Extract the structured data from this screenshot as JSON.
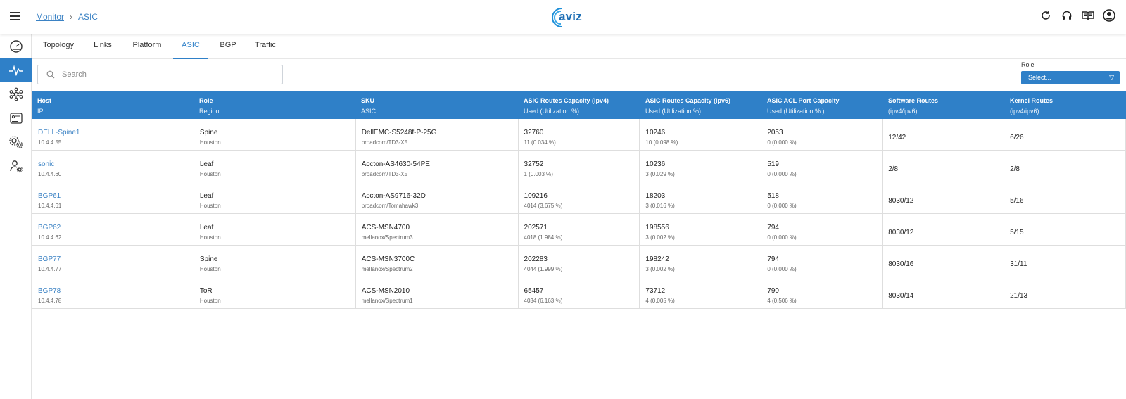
{
  "breadcrumb": {
    "parent": "Monitor",
    "separator": "›",
    "current": "ASIC"
  },
  "logo": {
    "text": "aviz",
    "color": "#1e6fb5"
  },
  "colors": {
    "accent": "#2f80c8",
    "link": "#3b82c4"
  },
  "topbar_icons": [
    "refresh-icon",
    "headset-icon",
    "book-icon",
    "account-icon"
  ],
  "rail_icons": [
    "dashboard-gauge-icon",
    "pulse-monitor-icon",
    "network-topology-icon",
    "inventory-icon",
    "settings-gears-icon",
    "user-settings-icon"
  ],
  "tabs": [
    "Topology",
    "Links",
    "Platform",
    "ASIC",
    "BGP",
    "Traffic"
  ],
  "active_tab": "ASIC",
  "search": {
    "placeholder": "Search",
    "value": ""
  },
  "role_filter": {
    "label": "Role",
    "value": "Select..."
  },
  "table": {
    "columns": [
      {
        "title": "Host",
        "sub": "IP"
      },
      {
        "title": "Role",
        "sub": "Region"
      },
      {
        "title": "SKU",
        "sub": "ASIC"
      },
      {
        "title": "ASIC Routes Capacity (ipv4)",
        "sub": "Used (Utilization %)"
      },
      {
        "title": "ASIC Routes Capacity (ipv6)",
        "sub": "Used (Utilization %)"
      },
      {
        "title": "ASIC ACL Port Capacity",
        "sub": "Used (Utilization % )"
      },
      {
        "title": "Software Routes",
        "sub": "(ipv4/ipv6)"
      },
      {
        "title": "Kernel Routes",
        "sub": "(ipv4/ipv6)"
      }
    ],
    "rows": [
      {
        "host": "DELL-Spine1",
        "ip": "10.4.4.55",
        "role": "Spine",
        "region": "Houston",
        "sku": "DellEMC-S5248f-P-25G",
        "asic": "broadcom/TD3-X5",
        "v4_cap": "32760",
        "v4_used": "11 (0.034 %)",
        "v6_cap": "10246",
        "v6_used": "10 (0.098 %)",
        "acl_cap": "2053",
        "acl_used": "0 (0.000 %)",
        "sw_routes": "12/42",
        "kernel_routes": "6/26"
      },
      {
        "host": "sonic",
        "ip": "10.4.4.60",
        "role": "Leaf",
        "region": "Houston",
        "sku": "Accton-AS4630-54PE",
        "asic": "broadcom/TD3-X5",
        "v4_cap": "32752",
        "v4_used": "1 (0.003 %)",
        "v6_cap": "10236",
        "v6_used": "3 (0.029 %)",
        "acl_cap": "519",
        "acl_used": "0 (0.000 %)",
        "sw_routes": "2/8",
        "kernel_routes": "2/8"
      },
      {
        "host": "BGP61",
        "ip": "10.4.4.61",
        "role": "Leaf",
        "region": "Houston",
        "sku": "Accton-AS9716-32D",
        "asic": "broadcom/Tomahawk3",
        "v4_cap": "109216",
        "v4_used": "4014 (3.675 %)",
        "v6_cap": "18203",
        "v6_used": "3 (0.016 %)",
        "acl_cap": "518",
        "acl_used": "0 (0.000 %)",
        "sw_routes": "8030/12",
        "kernel_routes": "5/16"
      },
      {
        "host": "BGP62",
        "ip": "10.4.4.62",
        "role": "Leaf",
        "region": "Houston",
        "sku": "ACS-MSN4700",
        "asic": "mellanox/Spectrum3",
        "v4_cap": "202571",
        "v4_used": "4018 (1.984 %)",
        "v6_cap": "198556",
        "v6_used": "3 (0.002 %)",
        "acl_cap": "794",
        "acl_used": "0 (0.000 %)",
        "sw_routes": "8030/12",
        "kernel_routes": "5/15"
      },
      {
        "host": "BGP77",
        "ip": "10.4.4.77",
        "role": "Spine",
        "region": "Houston",
        "sku": "ACS-MSN3700C",
        "asic": "mellanox/Spectrum2",
        "v4_cap": "202283",
        "v4_used": "4044 (1.999 %)",
        "v6_cap": "198242",
        "v6_used": "3 (0.002 %)",
        "acl_cap": "794",
        "acl_used": "0 (0.000 %)",
        "sw_routes": "8030/16",
        "kernel_routes": "31/11"
      },
      {
        "host": "BGP78",
        "ip": "10.4.4.78",
        "role": "ToR",
        "region": "Houston",
        "sku": "ACS-MSN2010",
        "asic": "mellanox/Spectrum1",
        "v4_cap": "65457",
        "v4_used": "4034 (6.163 %)",
        "v6_cap": "73712",
        "v6_used": "4 (0.005 %)",
        "acl_cap": "790",
        "acl_used": "4 (0.506 %)",
        "sw_routes": "8030/14",
        "kernel_routes": "21/13"
      }
    ]
  }
}
